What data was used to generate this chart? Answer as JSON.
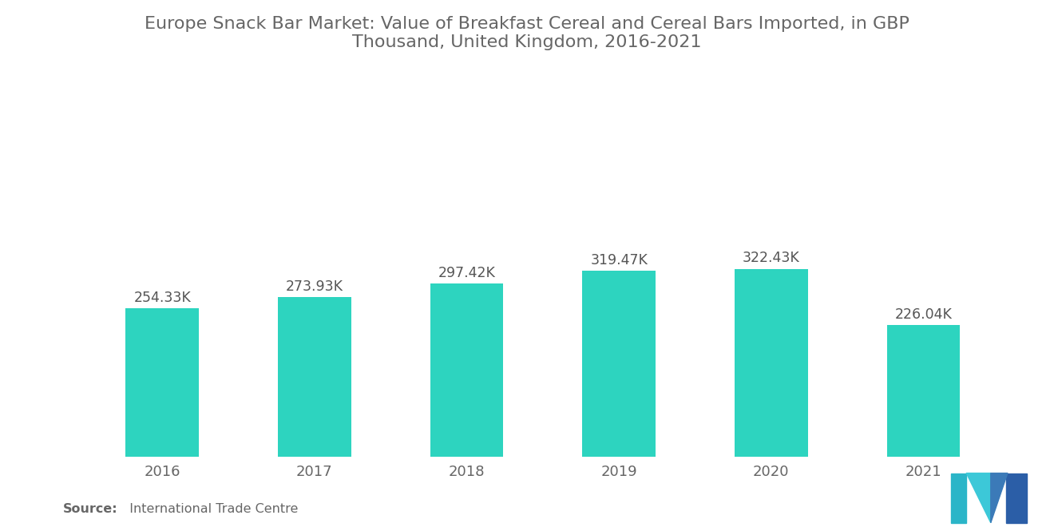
{
  "title": "Europe Snack Bar Market: Value of Breakfast Cereal and Cereal Bars Imported, in GBP\nThousand, United Kingdom, 2016-2021",
  "categories": [
    "2016",
    "2017",
    "2018",
    "2019",
    "2020",
    "2021"
  ],
  "values": [
    254.33,
    273.93,
    297.42,
    319.47,
    322.43,
    226.04
  ],
  "labels": [
    "254.33K",
    "273.93K",
    "297.42K",
    "319.47K",
    "322.43K",
    "226.04K"
  ],
  "bar_color": "#2DD4BF",
  "background_color": "#FFFFFF",
  "title_color": "#666666",
  "label_color": "#555555",
  "tick_color": "#666666",
  "source_label_bold": "Source:",
  "source_text": "  International Trade Centre",
  "title_fontsize": 16,
  "label_fontsize": 12.5,
  "tick_fontsize": 13,
  "source_fontsize": 11.5,
  "ylim": [
    0,
    620
  ],
  "bar_width": 0.48
}
